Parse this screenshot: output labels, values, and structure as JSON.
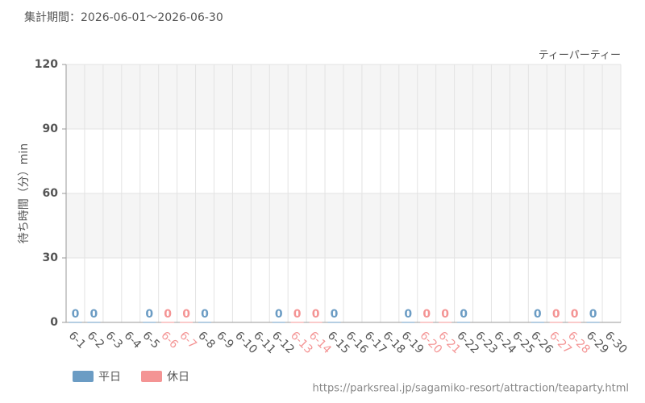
{
  "chart_data": {
    "type": "bar",
    "title": "集計期間：2026-06-01～2026-06-30",
    "subtitle": "ティーパーティー",
    "y_label": "待ち時間（分）min",
    "source": "https://parksreal.jp/sagamiko-resort/attraction/teaparty.html",
    "categories": [
      "6-1",
      "6-2",
      "6-3",
      "6-4",
      "6-5",
      "6-6",
      "6-7",
      "6-8",
      "6-9",
      "6-10",
      "6-11",
      "6-12",
      "6-13",
      "6-14",
      "6-15",
      "6-16",
      "6-17",
      "6-18",
      "6-19",
      "6-20",
      "6-21",
      "6-22",
      "6-23",
      "6-24",
      "6-25",
      "6-26",
      "6-27",
      "6-28",
      "6-29",
      "6-30"
    ],
    "series": [
      {
        "name": "平日",
        "color": "#6b9cc4",
        "values": [
          0,
          0,
          null,
          null,
          0,
          null,
          null,
          0,
          null,
          null,
          null,
          0,
          null,
          null,
          0,
          null,
          null,
          null,
          0,
          null,
          null,
          0,
          null,
          null,
          null,
          0,
          null,
          null,
          0,
          null
        ]
      },
      {
        "name": "休日",
        "color": "#f49494",
        "values": [
          null,
          null,
          null,
          null,
          null,
          0,
          0,
          null,
          null,
          null,
          null,
          null,
          0,
          0,
          null,
          null,
          null,
          null,
          null,
          0,
          0,
          null,
          null,
          null,
          null,
          null,
          0,
          0,
          null,
          null
        ]
      }
    ],
    "ylim": [
      0,
      120
    ],
    "yticks": [
      0,
      30,
      60,
      90,
      120
    ],
    "grid": true
  }
}
